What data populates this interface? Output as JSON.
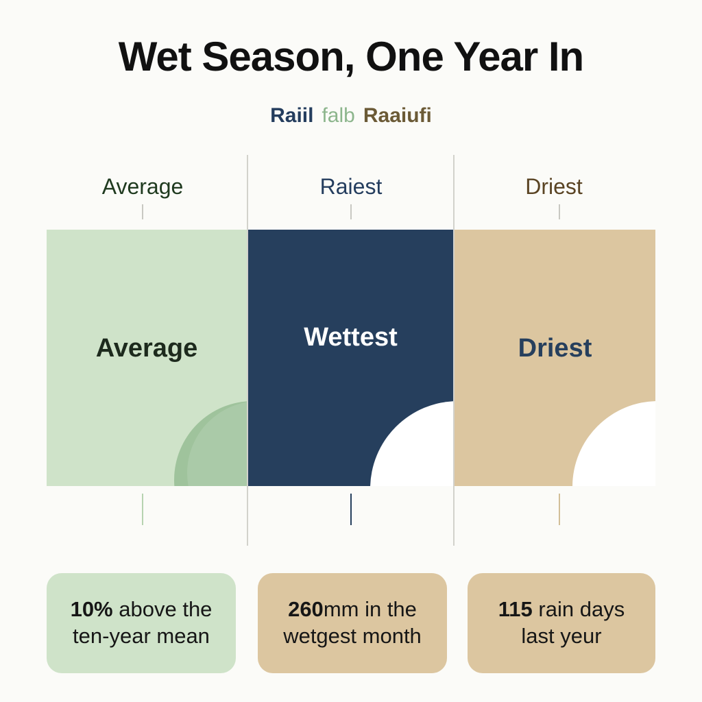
{
  "title": "Wet Season, One Year In",
  "legend": {
    "item1": "Raiil",
    "item2": "falb",
    "item3": "Raaiufi"
  },
  "columns": [
    {
      "label": "Average",
      "panel_label": "Average"
    },
    {
      "label": "Raiest",
      "panel_label": "Wettest"
    },
    {
      "label": "Driest",
      "panel_label": "Driest"
    }
  ],
  "cards": [
    {
      "bold": "10%",
      "rest": "above the",
      "line2": "ten-year mean"
    },
    {
      "bold": "260",
      "rest": "mm in the",
      "line2": "wetgest month"
    },
    {
      "bold": "115",
      "rest": "rain days",
      "line2": "last yeur"
    }
  ],
  "colors": {
    "green": "#cfe3c9",
    "green_dark": "#9fc39c",
    "navy": "#263f5d",
    "tan": "#dcc6a0",
    "white": "#ffffff"
  }
}
